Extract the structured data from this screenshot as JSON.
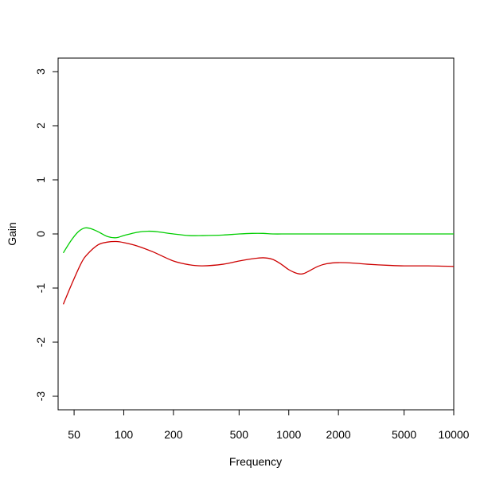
{
  "chart_data": {
    "type": "line",
    "title": "",
    "xlabel": "Frequency",
    "ylabel": "Gain",
    "x_scale": "log",
    "xlim": [
      40,
      10000
    ],
    "ylim": [
      -3.25,
      3.25
    ],
    "x_ticks": [
      50,
      100,
      200,
      500,
      1000,
      2000,
      5000,
      10000
    ],
    "x_tick_labels": [
      "50",
      "100",
      "200",
      "500",
      "1000",
      "2000",
      "5000",
      "10000"
    ],
    "y_ticks": [
      -3,
      -2,
      -1,
      0,
      1,
      2,
      3
    ],
    "y_tick_labels": [
      "-3",
      "-2",
      "-1",
      "0",
      "1",
      "2",
      "3"
    ],
    "grid": false,
    "series": [
      {
        "color": "#00cd00",
        "x": [
          43,
          48,
          53,
          58,
          63,
          70,
          80,
          90,
          100,
          120,
          140,
          160,
          200,
          250,
          300,
          400,
          500,
          600,
          700,
          800,
          1000,
          1500,
          2000,
          3000,
          5000,
          7000,
          10000
        ],
        "y": [
          -0.35,
          -0.12,
          0.04,
          0.11,
          0.1,
          0.04,
          -0.05,
          -0.07,
          -0.03,
          0.03,
          0.05,
          0.04,
          0.0,
          -0.03,
          -0.03,
          -0.02,
          0.0,
          0.01,
          0.01,
          0.0,
          0.0,
          0.0,
          0.0,
          0.0,
          0.0,
          0.0,
          0.0
        ]
      },
      {
        "color": "#cd0000",
        "x": [
          43,
          48,
          55,
          60,
          70,
          80,
          90,
          100,
          120,
          150,
          200,
          250,
          300,
          400,
          500,
          600,
          700,
          800,
          900,
          1000,
          1100,
          1200,
          1300,
          1500,
          1700,
          2000,
          2500,
          3000,
          4000,
          5000,
          7000,
          10000
        ],
        "y": [
          -1.3,
          -0.95,
          -0.55,
          -0.38,
          -0.2,
          -0.15,
          -0.14,
          -0.16,
          -0.22,
          -0.33,
          -0.5,
          -0.57,
          -0.59,
          -0.56,
          -0.5,
          -0.46,
          -0.44,
          -0.47,
          -0.56,
          -0.66,
          -0.72,
          -0.74,
          -0.7,
          -0.6,
          -0.55,
          -0.53,
          -0.54,
          -0.56,
          -0.58,
          -0.59,
          -0.59,
          -0.6
        ]
      }
    ]
  }
}
